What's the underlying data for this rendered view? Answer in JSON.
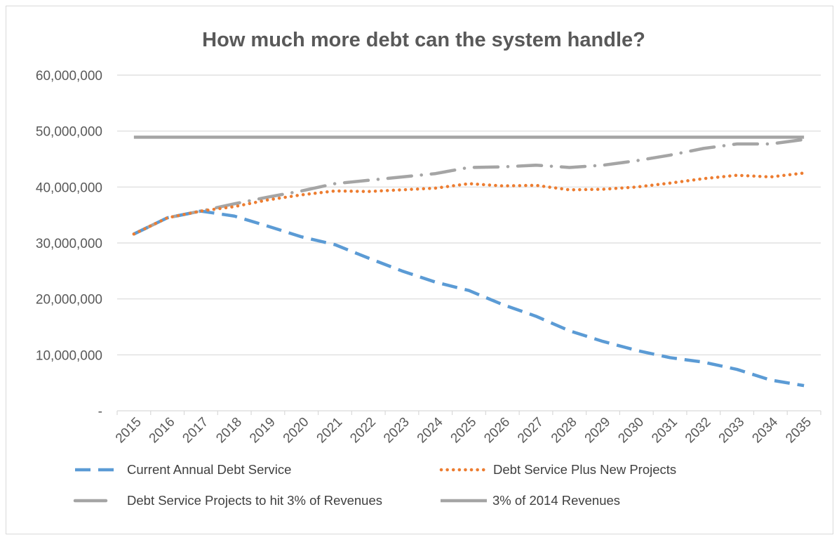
{
  "chart_data": {
    "type": "line",
    "title": "How much more debt can the system handle?",
    "xlabel": "",
    "ylabel": "",
    "categories": [
      "2015",
      "2016",
      "2017",
      "2018",
      "2019",
      "2020",
      "2021",
      "2022",
      "2023",
      "2024",
      "2025",
      "2026",
      "2027",
      "2028",
      "2029",
      "2030",
      "2031",
      "2032",
      "2033",
      "2034",
      "2035"
    ],
    "ylim": [
      0,
      60000000
    ],
    "yticks": [
      {
        "value": 0,
        "label": "-"
      },
      {
        "value": 10000000,
        "label": "10,000,000"
      },
      {
        "value": 20000000,
        "label": "20,000,000"
      },
      {
        "value": 30000000,
        "label": "30,000,000"
      },
      {
        "value": 40000000,
        "label": "40,000,000"
      },
      {
        "value": 50000000,
        "label": "50,000,000"
      },
      {
        "value": 60000000,
        "label": "60,000,000"
      }
    ],
    "grid": true,
    "legend_position": "bottom",
    "series": [
      {
        "name": "Current Annual Debt Service",
        "color": "#5b9bd5",
        "style": "dashed",
        "values": [
          31600000,
          34500000,
          35700000,
          34800000,
          33000000,
          31100000,
          29700000,
          27300000,
          25000000,
          23000000,
          21500000,
          19000000,
          16900000,
          14300000,
          12400000,
          10800000,
          9500000,
          8700000,
          7400000,
          5500000,
          4500000
        ]
      },
      {
        "name": "Debt Service Plus New Projects",
        "color": "#ed7d31",
        "style": "dotted",
        "values": [
          31600000,
          34500000,
          35700000,
          36500000,
          37700000,
          38600000,
          39300000,
          39200000,
          39500000,
          39800000,
          40600000,
          40200000,
          40300000,
          39500000,
          39600000,
          40000000,
          40700000,
          41500000,
          42100000,
          41800000,
          42500000
        ]
      },
      {
        "name": "Debt Service Projects to hit 3% of Revenues",
        "color": "#a5a5a5",
        "style": "dash-dot",
        "values": [
          31600000,
          34500000,
          35700000,
          37000000,
          38200000,
          39300000,
          40600000,
          41200000,
          41800000,
          42400000,
          43500000,
          43600000,
          43900000,
          43500000,
          43900000,
          44700000,
          45700000,
          46900000,
          47700000,
          47700000,
          48500000
        ]
      },
      {
        "name": "3% of 2014 Revenues",
        "color": "#a5a5a5",
        "style": "solid",
        "values": [
          48900000,
          48900000,
          48900000,
          48900000,
          48900000,
          48900000,
          48900000,
          48900000,
          48900000,
          48900000,
          48900000,
          48900000,
          48900000,
          48900000,
          48900000,
          48900000,
          48900000,
          48900000,
          48900000,
          48900000,
          48900000
        ]
      }
    ]
  }
}
